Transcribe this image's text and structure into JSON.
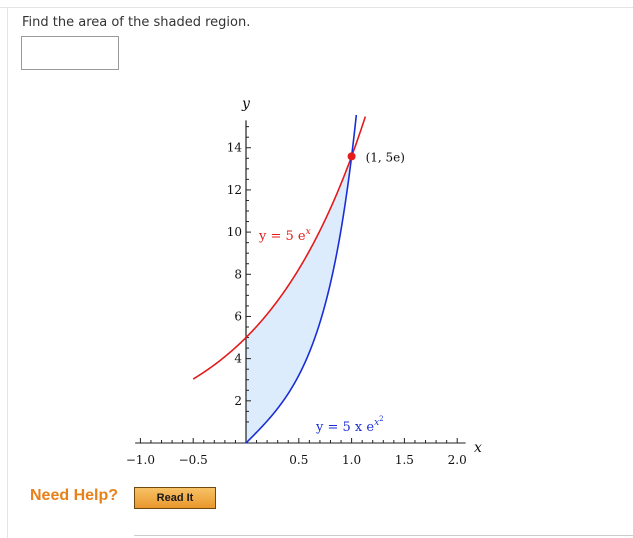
{
  "question": {
    "text": "Find the area of the shaded region."
  },
  "answer": {
    "value": ""
  },
  "help": {
    "label": "Need Help?",
    "read_it_label": "Read It"
  },
  "colors": {
    "red_curve": "#e31b1b",
    "blue_curve": "#1a2ed6",
    "shade": "#dcecfc",
    "help_orange": "#e8811a"
  },
  "chart_data": {
    "type": "line",
    "xlabel": "x",
    "ylabel": "y",
    "xlim": [
      -1.15,
      2.1
    ],
    "ylim": [
      -0.2,
      15.3
    ],
    "x_ticks": [
      "-1.0",
      "-0.5",
      "0.5",
      "1.0",
      "1.5",
      "2.0"
    ],
    "y_ticks": [
      "2",
      "4",
      "6",
      "8",
      "10",
      "12",
      "14"
    ],
    "series": [
      {
        "name": "y = 5 e^x",
        "color": "#e31b1b",
        "x_range": [
          -0.5,
          1.13
        ]
      },
      {
        "name": "y = 5 x e^(x^2)",
        "color": "#1a2ed6",
        "x_range": [
          0,
          1.06
        ]
      }
    ],
    "labels": {
      "red_prefix": "y = 5 e",
      "red_sup": "x",
      "blue_prefix": "y = 5 x e",
      "blue_sup": "x",
      "blue_sup2": "2"
    },
    "shaded_region": {
      "between": [
        "y = 5 e^x",
        "y = 5 x e^(x^2)"
      ],
      "x_from": 0,
      "x_to": 1
    },
    "point": {
      "x": 1,
      "y": 13.59,
      "label": "(1, 5e)"
    }
  }
}
